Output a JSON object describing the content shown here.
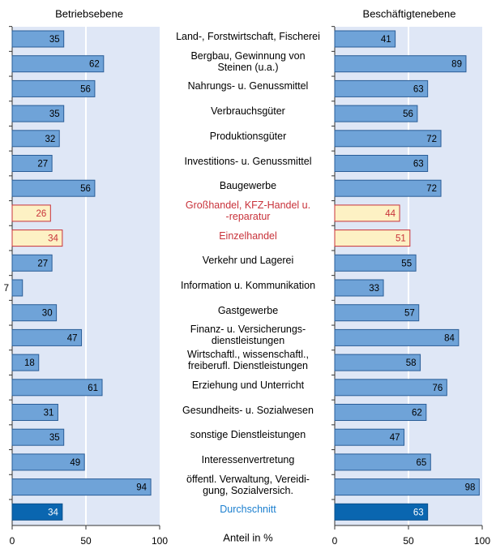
{
  "chart_data": {
    "type": "bar",
    "orientation": "horizontal",
    "x_label": "Anteil in %",
    "categories": [
      "Land-, Forstwirtschaft, Fischerei",
      "Bergbau, Gewinnung von\nSteinen (u.a.)",
      "Nahrungs- u. Genussmittel",
      "Verbrauchsgüter",
      "Produktionsgüter",
      "Investitions- u. Genussmittel",
      "Baugewerbe",
      "Großhandel, KFZ-Handel u.\n-reparatur",
      "Einzelhandel",
      "Verkehr und Lagerei",
      "Information u. Kommunikation",
      "Gastgewerbe",
      "Finanz- u. Versicherungs-\ndienstleistungen",
      "Wirtschaftl., wissenschaftl.,\nfreiberufl. Dienstleistungen",
      "Erziehung und Unterricht",
      "Gesundheits- u. Sozialwesen",
      "sonstige Dienstleistungen",
      "Interessenvertretung",
      "öffentl. Verwaltung, Vereidi-\ngung, Sozialversich.",
      "Durchschnitt"
    ],
    "colors": [
      "#6fa3d8",
      "#6fa3d8",
      "#6fa3d8",
      "#6fa3d8",
      "#6fa3d8",
      "#6fa3d8",
      "#6fa3d8",
      "#fdf1c4",
      "#fdf1c4",
      "#6fa3d8",
      "#6fa3d8",
      "#6fa3d8",
      "#6fa3d8",
      "#6fa3d8",
      "#6fa3d8",
      "#6fa3d8",
      "#6fa3d8",
      "#6fa3d8",
      "#6fa3d8",
      "#0a66b0"
    ],
    "edge_colors": [
      "#2a5d97",
      "#2a5d97",
      "#2a5d97",
      "#2a5d97",
      "#2a5d97",
      "#2a5d97",
      "#2a5d97",
      "#c8323a",
      "#c8323a",
      "#2a5d97",
      "#2a5d97",
      "#2a5d97",
      "#2a5d97",
      "#2a5d97",
      "#2a5d97",
      "#2a5d97",
      "#2a5d97",
      "#2a5d97",
      "#2a5d97",
      "#0a4f8a"
    ],
    "text_colors": [
      "#000",
      "#000",
      "#000",
      "#000",
      "#000",
      "#000",
      "#000",
      "#c8323a",
      "#c8323a",
      "#000",
      "#000",
      "#000",
      "#000",
      "#000",
      "#000",
      "#000",
      "#000",
      "#000",
      "#000",
      "#1b7fcf"
    ],
    "value_text_colors": [
      "#000",
      "#000",
      "#000",
      "#000",
      "#000",
      "#000",
      "#000",
      "#c8323a",
      "#c8323a",
      "#000",
      "#000",
      "#000",
      "#000",
      "#000",
      "#000",
      "#000",
      "#000",
      "#000",
      "#000",
      "#fff"
    ],
    "series": [
      {
        "name": "Betriebsebene",
        "values": [
          35,
          62,
          56,
          35,
          32,
          27,
          56,
          26,
          34,
          27,
          7,
          30,
          47,
          18,
          61,
          31,
          35,
          49,
          94,
          34
        ]
      },
      {
        "name": "Beschäftigtenebene",
        "values": [
          41,
          89,
          63,
          56,
          72,
          63,
          72,
          44,
          51,
          55,
          33,
          57,
          84,
          58,
          76,
          62,
          47,
          65,
          98,
          63
        ]
      }
    ],
    "xlim": [
      0,
      100
    ],
    "xticks": [
      0,
      50,
      100
    ],
    "grid": true,
    "background": "#dfe7f6"
  }
}
